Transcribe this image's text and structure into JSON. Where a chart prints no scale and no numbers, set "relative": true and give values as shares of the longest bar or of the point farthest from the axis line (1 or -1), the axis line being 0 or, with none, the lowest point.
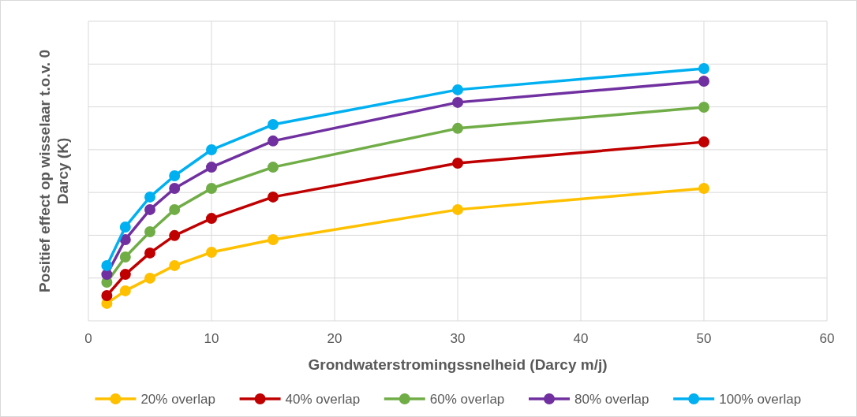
{
  "chart_data": {
    "type": "line",
    "relative": true,
    "xlabel": "Grondwaterstromingssnelheid (Darcy m/j)",
    "ylabel": "Positief effect op wisselaar t.o.v. 0 Darcy (K)",
    "x": [
      1.5,
      3,
      5,
      7,
      10,
      15,
      30,
      50
    ],
    "xlim": [
      0,
      60
    ],
    "xticks": [
      0,
      10,
      20,
      30,
      40,
      50,
      60
    ],
    "grid": true,
    "legend": "bottom",
    "marker": "circle",
    "line_style": "solid",
    "series": [
      {
        "name": "20% overlap",
        "color": "#ffc000",
        "values": [
          0.069,
          0.119,
          0.169,
          0.219,
          0.272,
          0.322,
          0.441,
          0.525
        ]
      },
      {
        "name": "40% overlap",
        "color": "#c00000",
        "values": [
          0.1,
          0.184,
          0.269,
          0.338,
          0.406,
          0.491,
          0.625,
          0.709
        ]
      },
      {
        "name": "60% overlap",
        "color": "#70ad47",
        "values": [
          0.153,
          0.253,
          0.353,
          0.441,
          0.525,
          0.609,
          0.763,
          0.847
        ]
      },
      {
        "name": "80% overlap",
        "color": "#7030a0",
        "values": [
          0.184,
          0.322,
          0.441,
          0.525,
          0.609,
          0.713,
          0.866,
          0.95
        ]
      },
      {
        "name": "100% overlap",
        "color": "#00b0f0",
        "values": [
          0.219,
          0.372,
          0.491,
          0.575,
          0.678,
          0.778,
          0.916,
          1
        ]
      }
    ]
  }
}
